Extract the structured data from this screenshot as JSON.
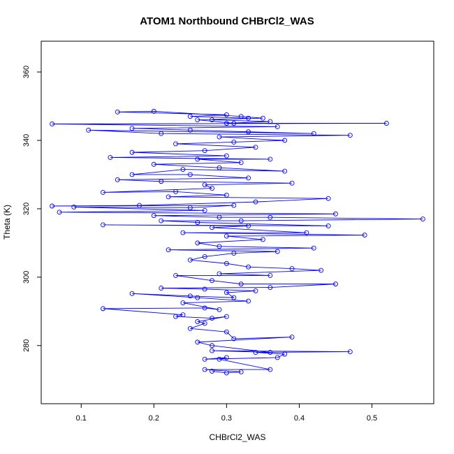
{
  "chart_data": {
    "type": "line",
    "title": "ATOM1 Northbound CHBrCl2_WAS",
    "xlabel": "CHBrCl2_WAS",
    "ylabel": "Theta (K)",
    "xlim": [
      0.045,
      0.585
    ],
    "ylim": [
      263,
      369
    ],
    "x_ticks": [
      0.1,
      0.2,
      0.3,
      0.4,
      0.5
    ],
    "x_tick_labels": [
      "0.1",
      "0.2",
      "0.3",
      "0.4",
      "0.5"
    ],
    "y_ticks": [
      280,
      300,
      320,
      340,
      360
    ],
    "y_tick_labels": [
      "280",
      "300",
      "320",
      "340",
      "360"
    ],
    "series": [
      {
        "color": "#0000ff",
        "marker": "open-circle",
        "points": [
          [
            0.28,
            272.5
          ],
          [
            0.3,
            272.0
          ],
          [
            0.32,
            272.3
          ],
          [
            0.27,
            273.0
          ],
          [
            0.36,
            273.0
          ],
          [
            0.29,
            276.0
          ],
          [
            0.3,
            276.5
          ],
          [
            0.27,
            276.0
          ],
          [
            0.37,
            276.5
          ],
          [
            0.38,
            277.5
          ],
          [
            0.34,
            278.0
          ],
          [
            0.47,
            278.2
          ],
          [
            0.28,
            278.5
          ],
          [
            0.36,
            278.0
          ],
          [
            0.28,
            280.0
          ],
          [
            0.26,
            281.0
          ],
          [
            0.39,
            282.5
          ],
          [
            0.31,
            282.0
          ],
          [
            0.3,
            284.0
          ],
          [
            0.25,
            285.0
          ],
          [
            0.27,
            286.5
          ],
          [
            0.26,
            287.0
          ],
          [
            0.3,
            288.5
          ],
          [
            0.28,
            288.0
          ],
          [
            0.23,
            288.5
          ],
          [
            0.24,
            289.0
          ],
          [
            0.13,
            290.8
          ],
          [
            0.27,
            291.0
          ],
          [
            0.29,
            290.5
          ],
          [
            0.24,
            292.5
          ],
          [
            0.33,
            293.0
          ],
          [
            0.26,
            294.0
          ],
          [
            0.17,
            295.2
          ],
          [
            0.25,
            294.5
          ],
          [
            0.31,
            294.0
          ],
          [
            0.3,
            295.5
          ],
          [
            0.34,
            296.0
          ],
          [
            0.27,
            296.5
          ],
          [
            0.21,
            296.8
          ],
          [
            0.36,
            297.0
          ],
          [
            0.45,
            298.0
          ],
          [
            0.32,
            298.0
          ],
          [
            0.28,
            299.0
          ],
          [
            0.23,
            300.5
          ],
          [
            0.36,
            300.5
          ],
          [
            0.29,
            301.0
          ],
          [
            0.43,
            302.0
          ],
          [
            0.39,
            302.5
          ],
          [
            0.33,
            303.0
          ],
          [
            0.3,
            304.0
          ],
          [
            0.25,
            305.0
          ],
          [
            0.27,
            306.0
          ],
          [
            0.31,
            307.0
          ],
          [
            0.37,
            307.5
          ],
          [
            0.22,
            308.0
          ],
          [
            0.42,
            308.5
          ],
          [
            0.29,
            309.0
          ],
          [
            0.26,
            310.0
          ],
          [
            0.35,
            311.0
          ],
          [
            0.3,
            312.0
          ],
          [
            0.49,
            312.3
          ],
          [
            0.24,
            313.0
          ],
          [
            0.41,
            313.0
          ],
          [
            0.28,
            314.5
          ],
          [
            0.33,
            315.0
          ],
          [
            0.13,
            315.3
          ],
          [
            0.44,
            315.0
          ],
          [
            0.26,
            316.0
          ],
          [
            0.21,
            316.5
          ],
          [
            0.32,
            316.5
          ],
          [
            0.57,
            317.0
          ],
          [
            0.36,
            317.5
          ],
          [
            0.29,
            317.5
          ],
          [
            0.2,
            318.0
          ],
          [
            0.45,
            318.5
          ],
          [
            0.07,
            319.0
          ],
          [
            0.27,
            319.5
          ],
          [
            0.09,
            320.5
          ],
          [
            0.25,
            320.3
          ],
          [
            0.31,
            321.0
          ],
          [
            0.06,
            320.8
          ],
          [
            0.18,
            321.0
          ],
          [
            0.34,
            322.0
          ],
          [
            0.44,
            323.0
          ],
          [
            0.22,
            323.5
          ],
          [
            0.3,
            324.0
          ],
          [
            0.23,
            325.0
          ],
          [
            0.13,
            324.8
          ],
          [
            0.28,
            326.0
          ],
          [
            0.27,
            327.0
          ],
          [
            0.39,
            327.5
          ],
          [
            0.21,
            328.0
          ],
          [
            0.15,
            328.5
          ],
          [
            0.33,
            329.0
          ],
          [
            0.25,
            330.0
          ],
          [
            0.17,
            330.0
          ],
          [
            0.24,
            331.5
          ],
          [
            0.38,
            331.0
          ],
          [
            0.29,
            332.0
          ],
          [
            0.2,
            333.0
          ],
          [
            0.32,
            333.5
          ],
          [
            0.26,
            334.5
          ],
          [
            0.36,
            334.5
          ],
          [
            0.14,
            335.0
          ],
          [
            0.3,
            335.5
          ],
          [
            0.17,
            336.5
          ],
          [
            0.27,
            337.0
          ],
          [
            0.34,
            338.0
          ],
          [
            0.23,
            339.0
          ],
          [
            0.31,
            339.5
          ],
          [
            0.38,
            340.0
          ],
          [
            0.29,
            341.0
          ],
          [
            0.47,
            341.5
          ],
          [
            0.21,
            342.0
          ],
          [
            0.11,
            343.0
          ],
          [
            0.42,
            342.0
          ],
          [
            0.33,
            342.5
          ],
          [
            0.25,
            343.0
          ],
          [
            0.17,
            343.5
          ],
          [
            0.37,
            344.0
          ],
          [
            0.06,
            344.8
          ],
          [
            0.52,
            345.0
          ],
          [
            0.3,
            345.0
          ],
          [
            0.36,
            345.5
          ],
          [
            0.28,
            346.0
          ],
          [
            0.33,
            346.5
          ],
          [
            0.25,
            347.0
          ],
          [
            0.3,
            347.5
          ],
          [
            0.15,
            348.3
          ],
          [
            0.2,
            348.5
          ],
          [
            0.32,
            347.0
          ],
          [
            0.35,
            346.5
          ],
          [
            0.26,
            346.0
          ],
          [
            0.31,
            345.0
          ]
        ]
      }
    ]
  }
}
